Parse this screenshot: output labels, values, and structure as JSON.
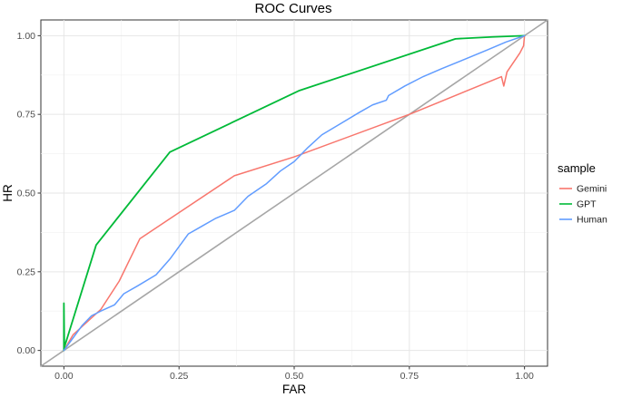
{
  "chart_data": {
    "type": "line",
    "title": "ROC Curves",
    "xlabel": "FAR",
    "ylabel": "HR",
    "xlim": [
      -0.05,
      1.05
    ],
    "ylim": [
      -0.05,
      1.05
    ],
    "xticks": [
      0,
      0.25,
      0.5,
      0.75,
      1
    ],
    "yticks": [
      0,
      0.25,
      0.5,
      0.75,
      1
    ],
    "xtick_labels": [
      "0.00",
      "0.25",
      "0.50",
      "0.75",
      "1.00"
    ],
    "ytick_labels": [
      "0.00",
      "0.25",
      "0.50",
      "0.75",
      "1.00"
    ],
    "grid": true,
    "legend_title": "sample",
    "legend_position": "right",
    "diagonal_reference": true,
    "diagonal_color": "#a6a6a6",
    "series": [
      {
        "name": "Gemini",
        "color": "#f8766d",
        "points": [
          [
            0,
            0
          ],
          [
            0.02,
            0.05
          ],
          [
            0.05,
            0.09
          ],
          [
            0.08,
            0.13
          ],
          [
            0.12,
            0.22
          ],
          [
            0.165,
            0.355
          ],
          [
            0.37,
            0.555
          ],
          [
            0.5,
            0.615
          ],
          [
            0.75,
            0.75
          ],
          [
            0.95,
            0.87
          ],
          [
            0.955,
            0.84
          ],
          [
            0.962,
            0.885
          ],
          [
            0.99,
            0.945
          ],
          [
            0.998,
            0.968
          ],
          [
            1,
            1
          ]
        ]
      },
      {
        "name": "GPT",
        "color": "#00ba38",
        "points": [
          [
            0,
            0
          ],
          [
            0,
            0.15
          ],
          [
            0.001,
            0.01
          ],
          [
            0.07,
            0.335
          ],
          [
            0.23,
            0.63
          ],
          [
            0.51,
            0.825
          ],
          [
            0.85,
            0.99
          ],
          [
            0.93,
            0.996
          ],
          [
            1,
            1
          ]
        ]
      },
      {
        "name": "Human",
        "color": "#619cff",
        "points": [
          [
            0,
            0
          ],
          [
            0.02,
            0.04
          ],
          [
            0.04,
            0.08
          ],
          [
            0.06,
            0.11
          ],
          [
            0.08,
            0.125
          ],
          [
            0.11,
            0.145
          ],
          [
            0.13,
            0.18
          ],
          [
            0.16,
            0.205
          ],
          [
            0.2,
            0.24
          ],
          [
            0.23,
            0.29
          ],
          [
            0.25,
            0.33
          ],
          [
            0.27,
            0.37
          ],
          [
            0.3,
            0.395
          ],
          [
            0.33,
            0.42
          ],
          [
            0.37,
            0.445
          ],
          [
            0.4,
            0.49
          ],
          [
            0.44,
            0.53
          ],
          [
            0.47,
            0.57
          ],
          [
            0.5,
            0.6
          ],
          [
            0.53,
            0.645
          ],
          [
            0.56,
            0.685
          ],
          [
            0.6,
            0.72
          ],
          [
            0.64,
            0.755
          ],
          [
            0.67,
            0.78
          ],
          [
            0.7,
            0.795
          ],
          [
            0.705,
            0.81
          ],
          [
            0.74,
            0.84
          ],
          [
            0.78,
            0.87
          ],
          [
            0.82,
            0.895
          ],
          [
            0.87,
            0.925
          ],
          [
            0.92,
            0.955
          ],
          [
            0.96,
            0.98
          ],
          [
            1,
            1
          ]
        ]
      }
    ]
  }
}
